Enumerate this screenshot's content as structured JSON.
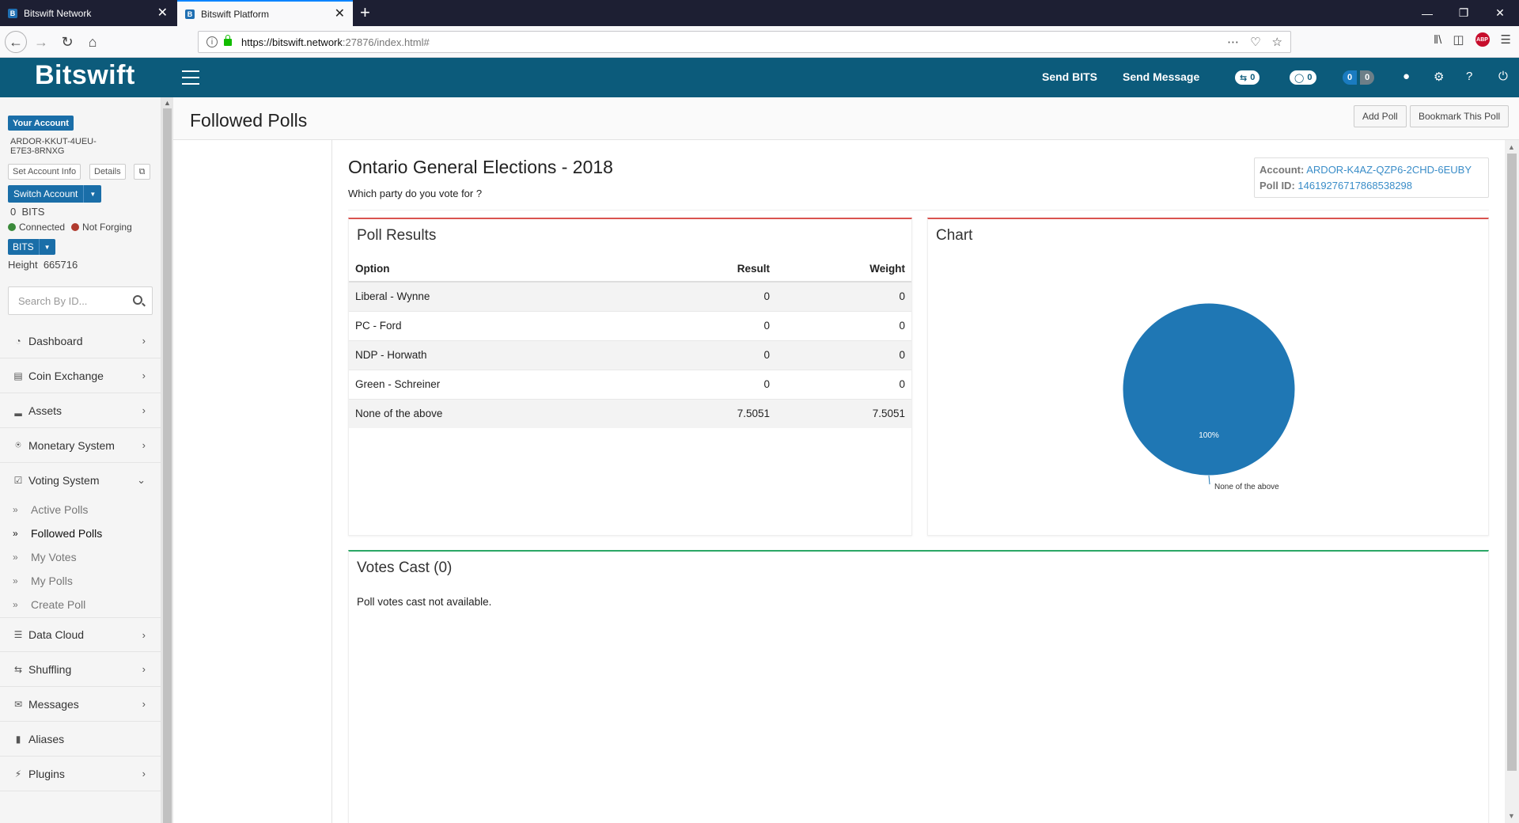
{
  "browser": {
    "tabs": [
      {
        "title": "Bitswift Network",
        "favicon": "B",
        "active": false
      },
      {
        "title": "Bitswift Platform",
        "favicon": "B",
        "active": true
      }
    ],
    "url": {
      "host": "https://bitswift.network",
      "rest": ":27876/index.html#"
    }
  },
  "header": {
    "brand": "Bitswift",
    "send_bits": "Send BITS",
    "send_message": "Send Message",
    "shuffle_count": "0",
    "chat_count": "0",
    "badge_a": "0",
    "badge_b": "0"
  },
  "sidebar": {
    "account_label": "Your Account",
    "account_id": "ARDOR-KKUT-4UEU-E7E3-8RNXG",
    "set_account_info": "Set Account Info",
    "details": "Details",
    "switch_account": "Switch Account",
    "balance_amount": "0",
    "balance_unit": "BITS",
    "connected": "Connected",
    "forging": "Not Forging",
    "coin": "BITS",
    "height_label": "Height",
    "height_value": "665716",
    "search_placeholder": "Search By ID...",
    "menu": [
      {
        "label": "Dashboard",
        "icon": "dashboard-icon"
      },
      {
        "label": "Coin Exchange",
        "icon": "exchange-icon"
      },
      {
        "label": "Assets",
        "icon": "assets-icon"
      },
      {
        "label": "Monetary System",
        "icon": "bank-icon"
      },
      {
        "label": "Voting System",
        "icon": "check-icon"
      },
      {
        "label": "Data Cloud",
        "icon": "database-icon"
      },
      {
        "label": "Shuffling",
        "icon": "shuffle-icon"
      },
      {
        "label": "Messages",
        "icon": "envelope-icon"
      },
      {
        "label": "Aliases",
        "icon": "bookmark-icon"
      },
      {
        "label": "Plugins",
        "icon": "plug-icon"
      }
    ],
    "voting_submenu": [
      "Active Polls",
      "Followed Polls",
      "My Votes",
      "My Polls",
      "Create Poll"
    ]
  },
  "page": {
    "title": "Followed Polls",
    "add_poll": "Add Poll",
    "bookmark_poll": "Bookmark This Poll"
  },
  "poll": {
    "title": "Ontario General Elections - 2018",
    "question": "Which party do you vote for ?",
    "account_label": "Account:",
    "account_value": "ARDOR-K4AZ-QZP6-2CHD-6EUBY",
    "poll_id_label": "Poll ID:",
    "poll_id_value": "14619276717868538298"
  },
  "results": {
    "title": "Poll Results",
    "headers": {
      "option": "Option",
      "result": "Result",
      "weight": "Weight"
    },
    "rows": [
      {
        "option": "Liberal - Wynne",
        "result": "0",
        "weight": "0"
      },
      {
        "option": "PC - Ford",
        "result": "0",
        "weight": "0"
      },
      {
        "option": "NDP - Horwath",
        "result": "0",
        "weight": "0"
      },
      {
        "option": "Green - Schreiner",
        "result": "0",
        "weight": "0"
      },
      {
        "option": "None of the above",
        "result": "7.5051",
        "weight": "7.5051"
      }
    ]
  },
  "chart_panel": {
    "title": "Chart"
  },
  "chart_data": {
    "type": "pie",
    "title": "",
    "categories": [
      "None of the above"
    ],
    "values": [
      100
    ],
    "slice_labels": [
      "100%"
    ],
    "colors": [
      "#1f77b4"
    ]
  },
  "votes": {
    "title": "Votes Cast (0)",
    "empty": "Poll votes cast not available."
  }
}
